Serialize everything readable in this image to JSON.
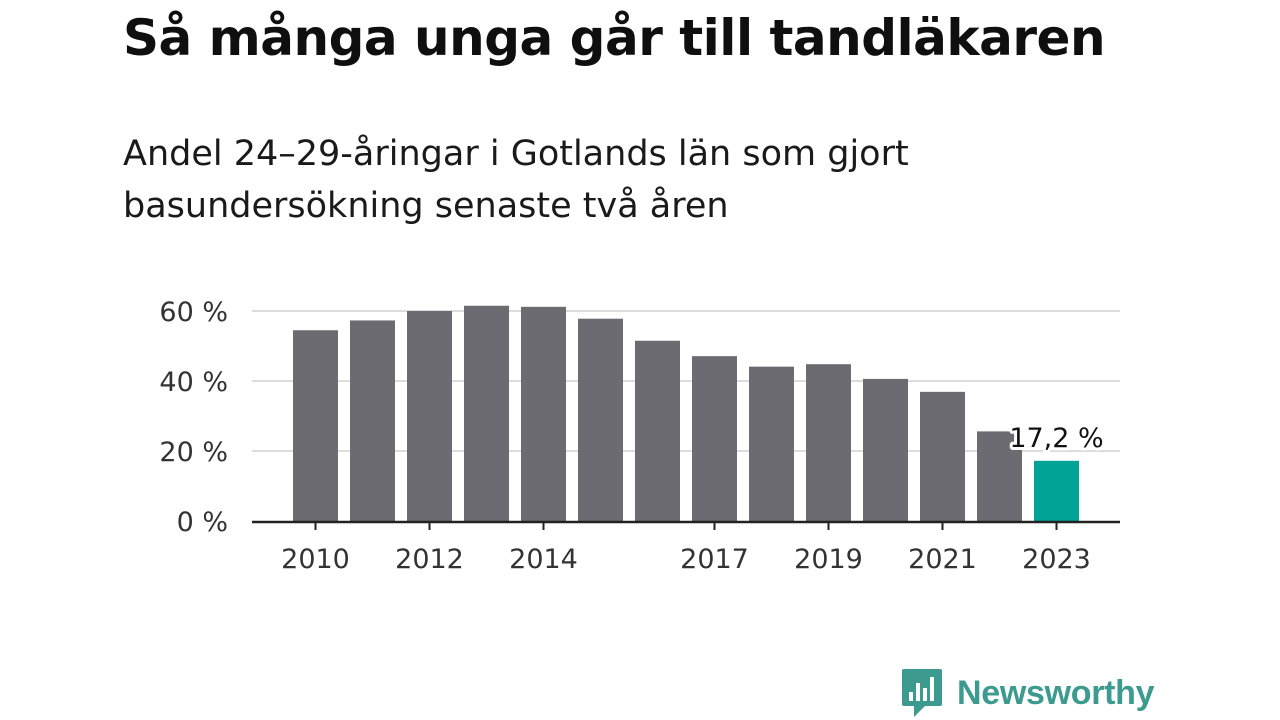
{
  "title": "Så många unga går till tandläkaren",
  "subtitle": "Andel 24–29-åringar i Gotlands län som gjort basundersökning senaste två åren",
  "brand": {
    "name": "Newsworthy",
    "icon": "newsworthy-logo-icon",
    "color": "#3c9a8e"
  },
  "chart_data": {
    "type": "bar",
    "title": "Så många unga går till tandläkaren",
    "subtitle": "Andel 24–29-åringar i Gotlands län som gjort basundersökning senaste två åren",
    "xlabel": "",
    "ylabel": "",
    "categories": [
      "2010",
      "2011",
      "2012",
      "2013",
      "2014",
      "2015",
      "2016",
      "2017",
      "2018",
      "2019",
      "2020",
      "2021",
      "2022",
      "2023"
    ],
    "values": [
      54.5,
      57.3,
      60.0,
      61.5,
      61.2,
      57.8,
      51.5,
      47.1,
      44.1,
      44.8,
      40.6,
      36.9,
      25.6,
      17.2
    ],
    "x_tick_labels": [
      "2010",
      "2012",
      "2014",
      "2017",
      "2019",
      "2021",
      "2023"
    ],
    "y_ticks": [
      0,
      20,
      40,
      60
    ],
    "y_tick_labels": [
      "0 %",
      "20 %",
      "40 %",
      "60 %"
    ],
    "ylim": [
      0,
      66
    ],
    "grid": true,
    "highlight": {
      "category": "2023",
      "label": "17,2 %"
    },
    "colors": {
      "bar": "#6c6b71",
      "highlight": "#00a396",
      "grid": "#dcdcdc",
      "axis": "#222222"
    }
  }
}
